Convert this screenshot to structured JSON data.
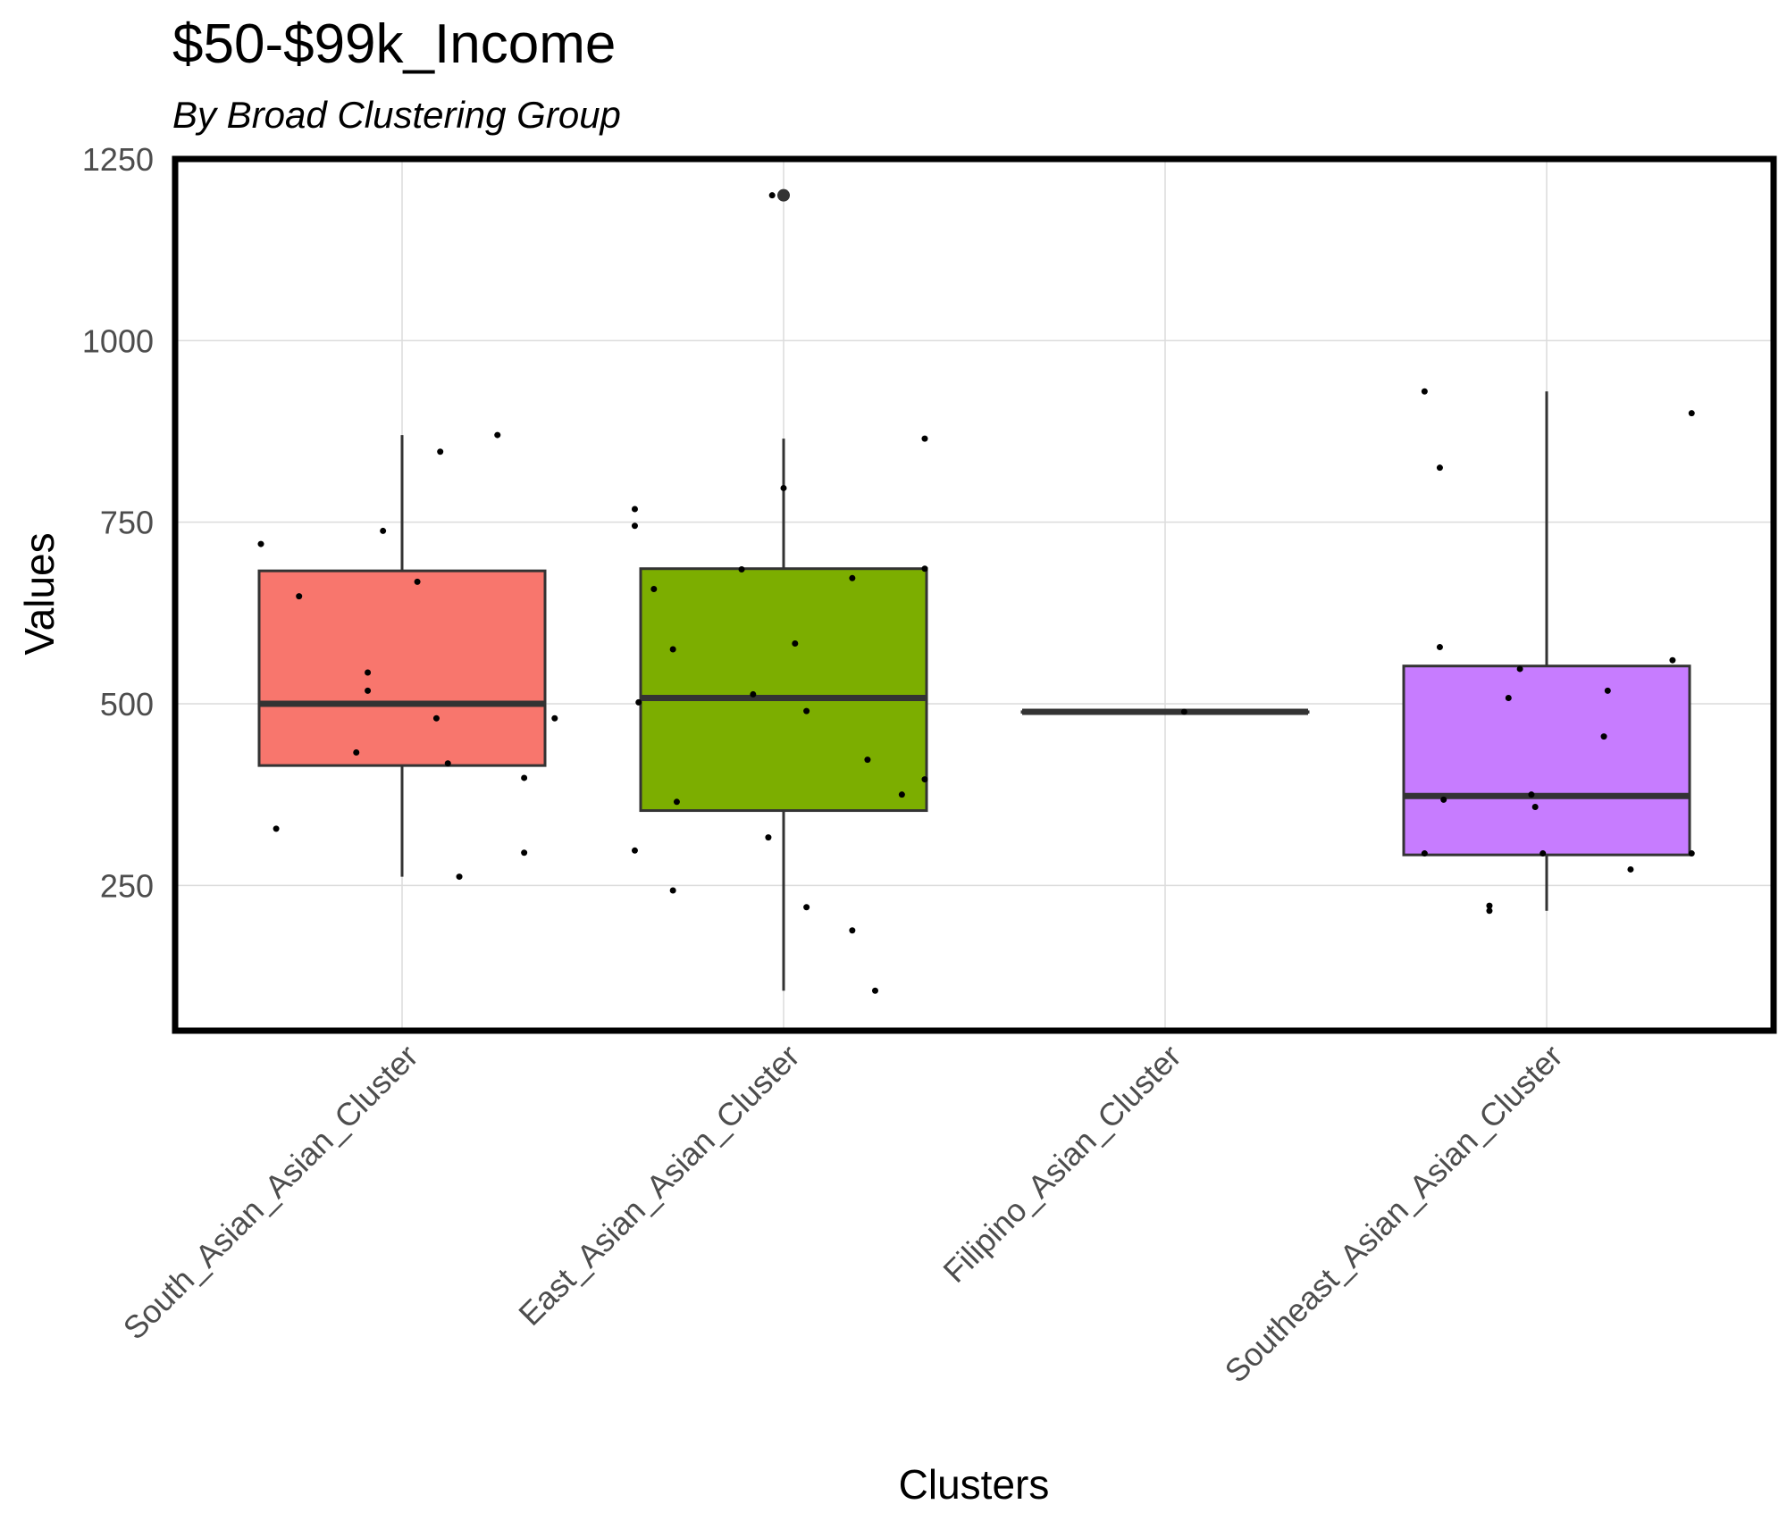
{
  "chart_data": {
    "type": "boxplot",
    "title": "$50-$99k_Income",
    "subtitle": "By Broad Clustering Group",
    "xlabel": "Clusters",
    "ylabel": "Values",
    "ylim": [
      50,
      1250
    ],
    "yticks": [
      250,
      500,
      750,
      1000,
      1250
    ],
    "categories": [
      "South_Asian_Asian_Cluster",
      "East_Asian_Asian_Cluster",
      "Filipino_Asian_Cluster",
      "Southeast_Asian_Asian_Cluster"
    ],
    "colors": [
      "#F8766D",
      "#7CAE00",
      "#00BFC4",
      "#C77CFF"
    ],
    "boxes": [
      {
        "category": "South_Asian_Asian_Cluster",
        "whisker_low": 262,
        "q1": 415,
        "median": 500,
        "q3": 683,
        "whisker_high": 870,
        "outliers": []
      },
      {
        "category": "East_Asian_Asian_Cluster",
        "whisker_low": 105,
        "q1": 353,
        "median": 508,
        "q3": 686,
        "whisker_high": 865,
        "outliers": [
          1200
        ]
      },
      {
        "category": "Filipino_Asian_Cluster",
        "whisker_low": 489,
        "q1": 489,
        "median": 489,
        "q3": 489,
        "whisker_high": 489,
        "outliers": []
      },
      {
        "category": "Southeast_Asian_Asian_Cluster",
        "whisker_low": 215,
        "q1": 292,
        "median": 373,
        "q3": 552,
        "whisker_high": 930,
        "outliers": []
      }
    ],
    "points": [
      {
        "group": 0,
        "offset": -0.37,
        "value": 720
      },
      {
        "group": 0,
        "offset": -0.27,
        "value": 648
      },
      {
        "group": 0,
        "offset": -0.33,
        "value": 328
      },
      {
        "group": 0,
        "offset": -0.12,
        "value": 433
      },
      {
        "group": 0,
        "offset": -0.09,
        "value": 543
      },
      {
        "group": 0,
        "offset": -0.09,
        "value": 518
      },
      {
        "group": 0,
        "offset": -0.05,
        "value": 738
      },
      {
        "group": 0,
        "offset": 0.04,
        "value": 668
      },
      {
        "group": 0,
        "offset": 0.09,
        "value": 480
      },
      {
        "group": 0,
        "offset": 0.1,
        "value": 847
      },
      {
        "group": 0,
        "offset": 0.12,
        "value": 418
      },
      {
        "group": 0,
        "offset": 0.15,
        "value": 262
      },
      {
        "group": 0,
        "offset": 0.25,
        "value": 870
      },
      {
        "group": 0,
        "offset": 0.32,
        "value": 398
      },
      {
        "group": 0,
        "offset": 0.32,
        "value": 295
      },
      {
        "group": 0,
        "offset": 0.4,
        "value": 480
      },
      {
        "group": 1,
        "offset": -0.39,
        "value": 768
      },
      {
        "group": 1,
        "offset": -0.39,
        "value": 745
      },
      {
        "group": 1,
        "offset": -0.39,
        "value": 298
      },
      {
        "group": 1,
        "offset": -0.38,
        "value": 502
      },
      {
        "group": 1,
        "offset": -0.34,
        "value": 658
      },
      {
        "group": 1,
        "offset": -0.29,
        "value": 575
      },
      {
        "group": 1,
        "offset": -0.28,
        "value": 365
      },
      {
        "group": 1,
        "offset": -0.29,
        "value": 243
      },
      {
        "group": 1,
        "offset": -0.11,
        "value": 685
      },
      {
        "group": 1,
        "offset": -0.08,
        "value": 513
      },
      {
        "group": 1,
        "offset": -0.04,
        "value": 316
      },
      {
        "group": 1,
        "offset": -0.03,
        "value": 1200
      },
      {
        "group": 1,
        "offset": 0.0,
        "value": 797
      },
      {
        "group": 1,
        "offset": 0.03,
        "value": 583
      },
      {
        "group": 1,
        "offset": 0.06,
        "value": 490
      },
      {
        "group": 1,
        "offset": 0.06,
        "value": 220
      },
      {
        "group": 1,
        "offset": 0.18,
        "value": 673
      },
      {
        "group": 1,
        "offset": 0.18,
        "value": 188
      },
      {
        "group": 1,
        "offset": 0.22,
        "value": 423
      },
      {
        "group": 1,
        "offset": 0.24,
        "value": 105
      },
      {
        "group": 1,
        "offset": 0.31,
        "value": 375
      },
      {
        "group": 1,
        "offset": 0.37,
        "value": 865
      },
      {
        "group": 1,
        "offset": 0.37,
        "value": 686
      },
      {
        "group": 1,
        "offset": 0.37,
        "value": 396
      },
      {
        "group": 2,
        "offset": 0.05,
        "value": 489
      },
      {
        "group": 3,
        "offset": -0.32,
        "value": 930
      },
      {
        "group": 3,
        "offset": -0.28,
        "value": 825
      },
      {
        "group": 3,
        "offset": -0.28,
        "value": 578
      },
      {
        "group": 3,
        "offset": -0.27,
        "value": 368
      },
      {
        "group": 3,
        "offset": -0.32,
        "value": 294
      },
      {
        "group": 3,
        "offset": -0.15,
        "value": 222
      },
      {
        "group": 3,
        "offset": -0.15,
        "value": 215
      },
      {
        "group": 3,
        "offset": -0.1,
        "value": 508
      },
      {
        "group": 3,
        "offset": -0.07,
        "value": 548
      },
      {
        "group": 3,
        "offset": -0.04,
        "value": 375
      },
      {
        "group": 3,
        "offset": -0.03,
        "value": 358
      },
      {
        "group": 3,
        "offset": -0.01,
        "value": 294
      },
      {
        "group": 3,
        "offset": 0.15,
        "value": 455
      },
      {
        "group": 3,
        "offset": 0.16,
        "value": 518
      },
      {
        "group": 3,
        "offset": 0.22,
        "value": 272
      },
      {
        "group": 3,
        "offset": 0.33,
        "value": 560
      },
      {
        "group": 3,
        "offset": 0.38,
        "value": 900
      },
      {
        "group": 3,
        "offset": 0.38,
        "value": 294
      }
    ]
  }
}
